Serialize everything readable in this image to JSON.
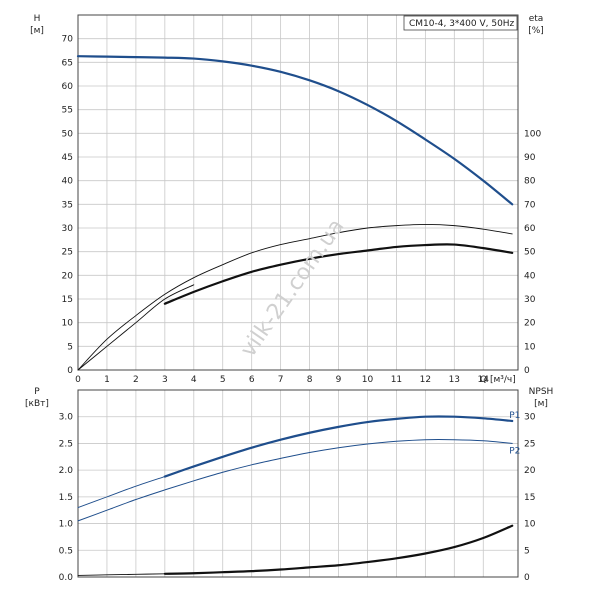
{
  "chart_data": [
    {
      "type": "line",
      "id": "head-efficiency",
      "legend_box": "CM10-4, 3*400 V, 50Hz",
      "y_left_label": "H",
      "y_left_unit": "[м]",
      "y_right_label": "eta",
      "y_right_unit": "[%]",
      "x_label": "Q [м³/ч]",
      "xlim": [
        0,
        15.2
      ],
      "ylim_left": [
        0,
        75
      ],
      "ylim_right": [
        0,
        150
      ],
      "x_ticks": [
        0,
        1,
        2,
        3,
        4,
        5,
        6,
        7,
        8,
        9,
        10,
        11,
        12,
        13,
        14
      ],
      "y_left_ticks": [
        0,
        5,
        10,
        15,
        20,
        25,
        30,
        35,
        40,
        45,
        50,
        55,
        60,
        65,
        70
      ],
      "y_right_ticks": [
        0,
        10,
        20,
        30,
        40,
        50,
        60,
        70,
        80,
        90,
        100
      ],
      "grid": true,
      "series": [
        {
          "key": "H",
          "axis": "left",
          "color": "#1f4e8c",
          "width": 2.2,
          "x": [
            0,
            1,
            2,
            3,
            4,
            5,
            6,
            7,
            8,
            9,
            10,
            11,
            12,
            13,
            14,
            15
          ],
          "y": [
            66.3,
            66.2,
            66.1,
            66.0,
            65.8,
            65.2,
            64.3,
            63.0,
            61.2,
            58.9,
            56.0,
            52.6,
            48.7,
            44.6,
            40.0,
            35.0
          ]
        },
        {
          "key": "eta-thin",
          "axis": "right",
          "color": "#111111",
          "width": 0.9,
          "x": [
            0,
            1,
            2,
            3,
            4,
            5,
            6,
            7,
            8,
            9,
            10,
            11,
            12,
            13,
            14,
            15
          ],
          "y": [
            0,
            13,
            23,
            32,
            39,
            44.5,
            49.5,
            53,
            55.5,
            58,
            60,
            61,
            61.5,
            61,
            59.5,
            57.5
          ]
        },
        {
          "key": "eta-thick",
          "axis": "right",
          "color": "#111111",
          "width": 2.2,
          "x": [
            3,
            4,
            5,
            6,
            7,
            8,
            9,
            10,
            11,
            12,
            13,
            14,
            15
          ],
          "y": [
            28,
            33,
            37.5,
            41.5,
            44.5,
            47,
            49,
            50.5,
            52,
            52.8,
            53,
            51.5,
            49.5
          ]
        },
        {
          "key": "eta-thin-low",
          "axis": "right",
          "color": "#111111",
          "width": 0.9,
          "x": [
            0,
            1,
            2,
            3,
            4
          ],
          "y": [
            0,
            10,
            20,
            30,
            36
          ]
        }
      ]
    },
    {
      "type": "line",
      "id": "power-npsh",
      "y_left_label": "P",
      "y_left_unit": "[кВт]",
      "y_right_label": "NPSH",
      "y_right_unit": "[м]",
      "xlim": [
        0,
        15.2
      ],
      "ylim_left": [
        0,
        3.5
      ],
      "ylim_right": [
        0,
        35
      ],
      "y_left_ticks": [
        0.0,
        0.5,
        1.0,
        1.5,
        2.0,
        2.5,
        3.0
      ],
      "y_left_tick_labels": [
        "0.0",
        "0.5",
        "1.0",
        "1.5",
        "2.0",
        "2.5",
        "3.0"
      ],
      "y_right_ticks": [
        0,
        5,
        10,
        15,
        20,
        25,
        30
      ],
      "grid": true,
      "series": [
        {
          "key": "P1-thin",
          "axis": "left",
          "color": "#1f4e8c",
          "width": 0.9,
          "x": [
            0,
            1,
            2,
            3
          ],
          "y": [
            1.3,
            1.5,
            1.7,
            1.88
          ]
        },
        {
          "key": "P1",
          "name": "P1",
          "axis": "left",
          "color": "#1f4e8c",
          "width": 2.2,
          "x": [
            3,
            4,
            5,
            6,
            7,
            8,
            9,
            10,
            11,
            12,
            13,
            14,
            15
          ],
          "y": [
            1.88,
            2.07,
            2.25,
            2.42,
            2.57,
            2.7,
            2.81,
            2.9,
            2.96,
            3.0,
            3.0,
            2.97,
            2.92
          ]
        },
        {
          "key": "P2",
          "name": "P2",
          "axis": "left",
          "color": "#1f4e8c",
          "width": 1.0,
          "x": [
            0,
            1,
            2,
            3,
            4,
            5,
            6,
            7,
            8,
            9,
            10,
            11,
            12,
            13,
            14,
            15
          ],
          "y": [
            1.05,
            1.25,
            1.45,
            1.63,
            1.8,
            1.96,
            2.1,
            2.22,
            2.33,
            2.42,
            2.49,
            2.54,
            2.57,
            2.57,
            2.55,
            2.5
          ]
        },
        {
          "key": "NPSH-thin",
          "axis": "right",
          "color": "#111111",
          "width": 0.9,
          "x": [
            0,
            1,
            2,
            3
          ],
          "y": [
            0.3,
            0.4,
            0.5,
            0.6
          ]
        },
        {
          "key": "NPSH",
          "axis": "right",
          "color": "#111111",
          "width": 2.2,
          "x": [
            3,
            4,
            5,
            6,
            7,
            8,
            9,
            10,
            11,
            12,
            13,
            14,
            15
          ],
          "y": [
            0.6,
            0.7,
            0.9,
            1.1,
            1.4,
            1.8,
            2.2,
            2.8,
            3.5,
            4.4,
            5.6,
            7.3,
            9.6
          ]
        }
      ]
    }
  ],
  "watermark": "vilk-21.com.ua"
}
